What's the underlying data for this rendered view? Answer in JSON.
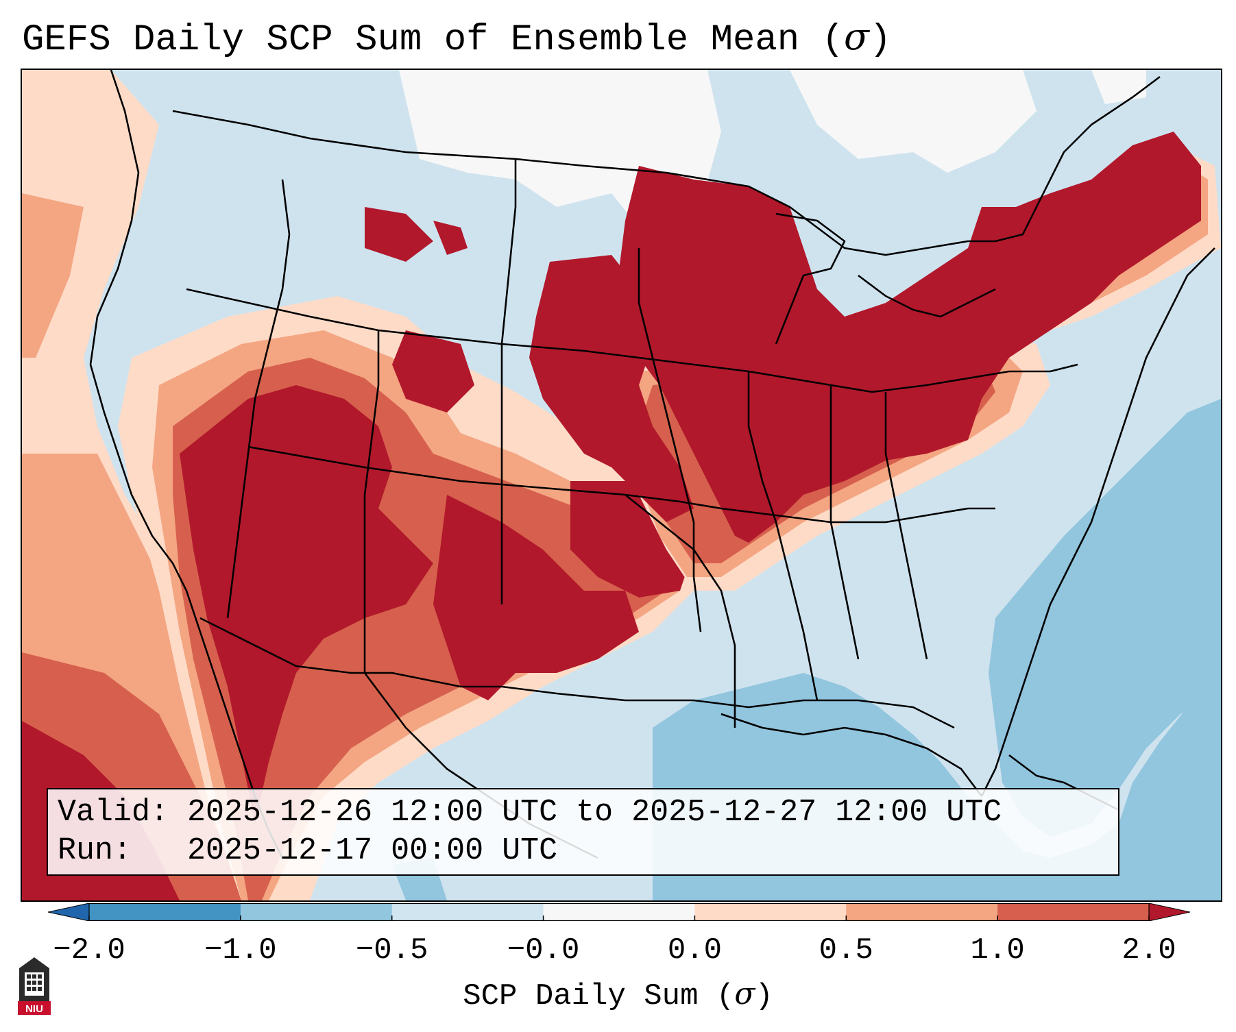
{
  "title": {
    "main": "GEFS Daily SCP Sum of Ensemble Mean (",
    "sigma": "σ",
    "close": ")"
  },
  "info": {
    "valid_label": "Valid:",
    "valid_value": "2025-12-26 12:00 UTC to 2025-12-27 12:00 UTC",
    "run_label": "Run:",
    "run_value": "2025-12-17 00:00 UTC"
  },
  "colorbar": {
    "label_main": "SCP Daily Sum (",
    "label_sigma": "σ",
    "label_close": ")",
    "ticks": [
      "−2.0",
      "−1.0",
      "−0.5",
      "−0.0",
      "0.0",
      "0.5",
      "1.0",
      "2.0"
    ],
    "bins": [
      {
        "from": "−2.0",
        "to": "−1.0",
        "color": "#4393c3"
      },
      {
        "from": "−1.0",
        "to": "−0.5",
        "color": "#92c5de"
      },
      {
        "from": "−0.5",
        "to": "−0.0",
        "color": "#d1e5f0"
      },
      {
        "from": "−0.0",
        "to": "0.0",
        "color": "#f7f7f7"
      },
      {
        "from": "0.0",
        "to": "0.5",
        "color": "#fddbc7"
      },
      {
        "from": "0.5",
        "to": "1.0",
        "color": "#f4a582"
      },
      {
        "from": "1.0",
        "to": "2.0",
        "color": "#d6604d"
      }
    ],
    "under_color": "#2166ac",
    "over_color": "#b2182b"
  },
  "map": {
    "domain": "Continental United States",
    "colors": {
      "ocean_weak": "#d1e5f0",
      "ocean_moderate": "#92c5de",
      "land_neutral": "#f7f7f7",
      "weak_positive": "#fddbc7",
      "moderate_positive": "#f4a582",
      "strong_positive": "#d6604d",
      "extreme_positive": "#b2182b",
      "border": "#000000"
    }
  },
  "logo": {
    "text": "NIU",
    "color": "#c8102e"
  }
}
